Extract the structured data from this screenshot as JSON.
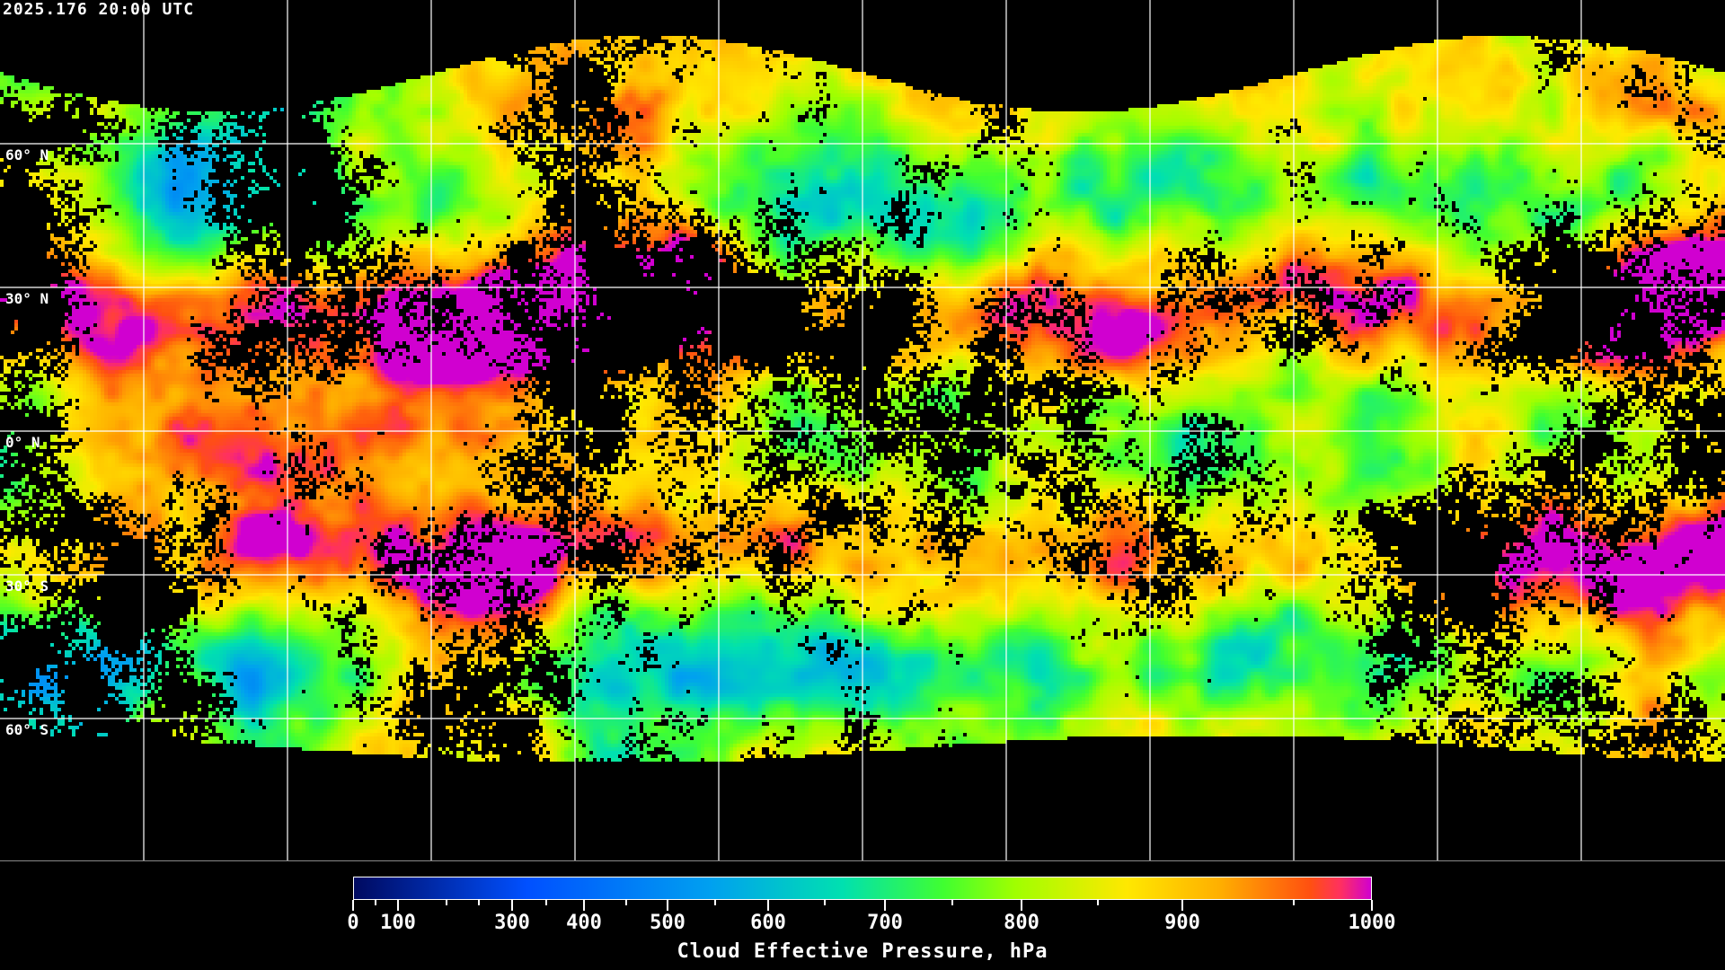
{
  "timestamp": "2025.176 20:00 UTC",
  "map": {
    "projection": "equirectangular",
    "gridline_spacing_deg": 30,
    "latitude_labels": [
      "60° N",
      "30° N",
      "0° N",
      "30° S",
      "60° S"
    ],
    "no_data_color": "#000000",
    "gridline_color": "#ffffff",
    "coastline_color": "#ffffff"
  },
  "colorbar": {
    "title": "Cloud Effective Pressure, hPa",
    "tick_labels": [
      "0",
      "100",
      "300",
      "400",
      "500",
      "600",
      "700",
      "800",
      "900",
      "1000"
    ],
    "range": [
      0,
      1000
    ],
    "colors": [
      "#000a60",
      "#0050ff",
      "#00a0f0",
      "#00e0b0",
      "#40ff30",
      "#a0ff00",
      "#ffe800",
      "#ffb000",
      "#ff5010",
      "#ff3060",
      "#d000d0"
    ]
  }
}
